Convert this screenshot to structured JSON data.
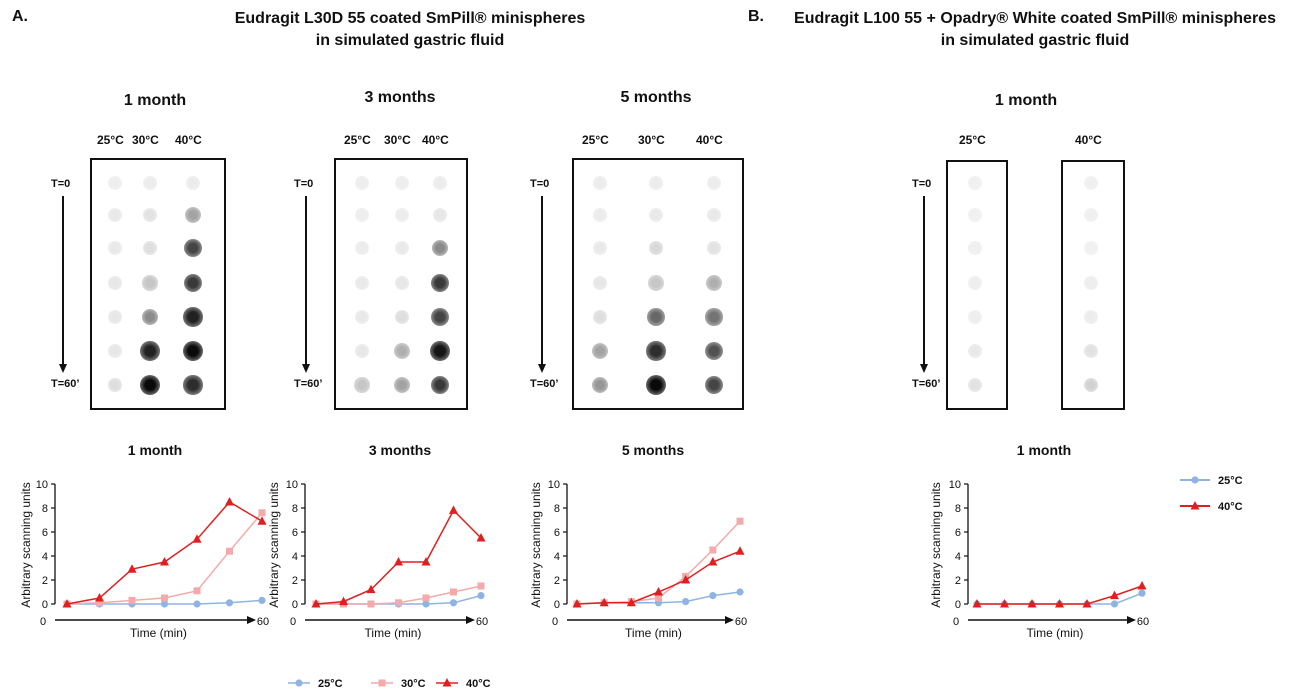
{
  "panel_a": {
    "label": "A.",
    "title_line1": "Eudragit L30D 55 coated SmPill® minispheres",
    "title_line2": "in simulated gastric fluid"
  },
  "panel_b": {
    "label": "B.",
    "title_line1": "Eudragit L100 55 + Opadry® White coated SmPill® minispheres",
    "title_line2": "in simulated gastric fluid"
  },
  "blots": [
    {
      "title": "1 month",
      "columns": [
        "25°C",
        "30°C",
        "40°C"
      ],
      "t_start": "T=0",
      "t_end": "T=60’",
      "intensity": [
        [
          0.03,
          0.04,
          0.04
        ],
        [
          0.05,
          0.08,
          0.35
        ],
        [
          0.05,
          0.1,
          0.75
        ],
        [
          0.06,
          0.2,
          0.8
        ],
        [
          0.06,
          0.45,
          0.9
        ],
        [
          0.06,
          0.9,
          1.0
        ],
        [
          0.1,
          1.0,
          0.85
        ]
      ]
    },
    {
      "title": "3 months",
      "columns": [
        "25°C",
        "30°C",
        "40°C"
      ],
      "t_start": "T=0",
      "t_end": "T=60’",
      "intensity": [
        [
          0.03,
          0.03,
          0.04
        ],
        [
          0.03,
          0.04,
          0.06
        ],
        [
          0.04,
          0.05,
          0.45
        ],
        [
          0.05,
          0.06,
          0.8
        ],
        [
          0.05,
          0.1,
          0.75
        ],
        [
          0.06,
          0.3,
          0.95
        ],
        [
          0.2,
          0.35,
          0.8
        ]
      ]
    },
    {
      "title": "5 months",
      "columns": [
        "25°C",
        "30°C",
        "40°C"
      ],
      "t_start": "T=0",
      "t_end": "T=60’",
      "intensity": [
        [
          0.04,
          0.04,
          0.04
        ],
        [
          0.04,
          0.05,
          0.05
        ],
        [
          0.05,
          0.12,
          0.08
        ],
        [
          0.06,
          0.2,
          0.3
        ],
        [
          0.1,
          0.6,
          0.55
        ],
        [
          0.35,
          0.85,
          0.7
        ],
        [
          0.4,
          1.0,
          0.75
        ]
      ]
    },
    {
      "title": "1 month",
      "columns": [
        "25°C",
        "40°C"
      ],
      "t_start": "T=0",
      "t_end": "T=60’",
      "intensity": [
        [
          0.02,
          0.02
        ],
        [
          0.02,
          0.02
        ],
        [
          0.02,
          0.02
        ],
        [
          0.03,
          0.03
        ],
        [
          0.03,
          0.04
        ],
        [
          0.05,
          0.08
        ],
        [
          0.08,
          0.15
        ]
      ]
    }
  ],
  "chart_data": [
    {
      "type": "line",
      "title": "1 month",
      "xlabel": "Time (min)",
      "ylabel": "Arbitrary scanning units",
      "x_tick_labels": [
        "0",
        "60"
      ],
      "ylim": [
        0,
        10
      ],
      "yticks": [
        "0",
        "2",
        "4",
        "6",
        "8",
        "10"
      ],
      "x": [
        0,
        10,
        20,
        30,
        40,
        50,
        60
      ],
      "series": [
        {
          "name": "25°C",
          "color": "#8fb4e3",
          "marker": "circle",
          "values": [
            0,
            0,
            0,
            0,
            0,
            0.1,
            0.3
          ]
        },
        {
          "name": "30°C",
          "color": "#f2aaaa",
          "marker": "square",
          "values": [
            0,
            0.1,
            0.3,
            0.5,
            1.1,
            4.4,
            7.6
          ]
        },
        {
          "name": "40°C",
          "color": "#e02020",
          "marker": "triangle",
          "values": [
            0,
            0.5,
            2.9,
            3.5,
            5.4,
            8.5,
            6.9
          ]
        }
      ]
    },
    {
      "type": "line",
      "title": "3 months",
      "xlabel": "Time (min)",
      "ylabel": "Arbitrary scanning units",
      "x_tick_labels": [
        "0",
        "60"
      ],
      "ylim": [
        0,
        10
      ],
      "yticks": [
        "0",
        "2",
        "4",
        "6",
        "8",
        "10"
      ],
      "x": [
        0,
        10,
        20,
        30,
        40,
        50,
        60
      ],
      "series": [
        {
          "name": "25°C",
          "color": "#8fb4e3",
          "marker": "circle",
          "values": [
            0,
            0,
            0,
            0,
            0,
            0.1,
            0.7
          ]
        },
        {
          "name": "30°C",
          "color": "#f2aaaa",
          "marker": "square",
          "values": [
            0,
            0,
            0,
            0.1,
            0.5,
            1.0,
            1.5
          ]
        },
        {
          "name": "40°C",
          "color": "#e02020",
          "marker": "triangle",
          "values": [
            0,
            0.2,
            1.2,
            3.5,
            3.5,
            7.8,
            5.5
          ]
        }
      ]
    },
    {
      "type": "line",
      "title": "5 months",
      "xlabel": "Time (min)",
      "ylabel": "Arbitrary scanning units",
      "x_tick_labels": [
        "0",
        "60"
      ],
      "ylim": [
        0,
        10
      ],
      "yticks": [
        "0",
        "2",
        "4",
        "6",
        "8",
        "10"
      ],
      "x": [
        0,
        10,
        20,
        30,
        40,
        50,
        60
      ],
      "series": [
        {
          "name": "25°C",
          "color": "#8fb4e3",
          "marker": "circle",
          "values": [
            0,
            0.1,
            0.1,
            0.1,
            0.2,
            0.7,
            1.0
          ]
        },
        {
          "name": "30°C",
          "color": "#f2aaaa",
          "marker": "square",
          "values": [
            0,
            0.1,
            0.2,
            0.5,
            2.3,
            4.5,
            6.9
          ]
        },
        {
          "name": "40°C",
          "color": "#e02020",
          "marker": "triangle",
          "values": [
            0,
            0.1,
            0.1,
            1.0,
            2.0,
            3.5,
            4.4
          ]
        }
      ]
    },
    {
      "type": "line",
      "title": "1 month",
      "xlabel": "Time (min)",
      "ylabel": "Arbitrary scanning units",
      "x_tick_labels": [
        "0",
        "60"
      ],
      "ylim": [
        0,
        10
      ],
      "yticks": [
        "0",
        "2",
        "4",
        "6",
        "8",
        "10"
      ],
      "x": [
        0,
        10,
        20,
        30,
        40,
        50,
        60
      ],
      "series": [
        {
          "name": "25°C",
          "color": "#8fb4e3",
          "marker": "circle",
          "values": [
            0,
            0,
            0,
            0,
            0,
            0,
            0.9
          ]
        },
        {
          "name": "40°C",
          "color": "#e02020",
          "marker": "triangle",
          "values": [
            0,
            0,
            0,
            0,
            0,
            0.7,
            1.5
          ]
        }
      ]
    }
  ],
  "legend_a": [
    {
      "name": "25°C",
      "color": "#8fb4e3",
      "marker": "circle"
    },
    {
      "name": "30°C",
      "color": "#f2aaaa",
      "marker": "square"
    },
    {
      "name": "40°C",
      "color": "#e02020",
      "marker": "triangle"
    }
  ],
  "legend_b": [
    {
      "name": "25°C",
      "color": "#8fb4e3",
      "marker": "circle"
    },
    {
      "name": "40°C",
      "color": "#e02020",
      "marker": "triangle"
    }
  ]
}
